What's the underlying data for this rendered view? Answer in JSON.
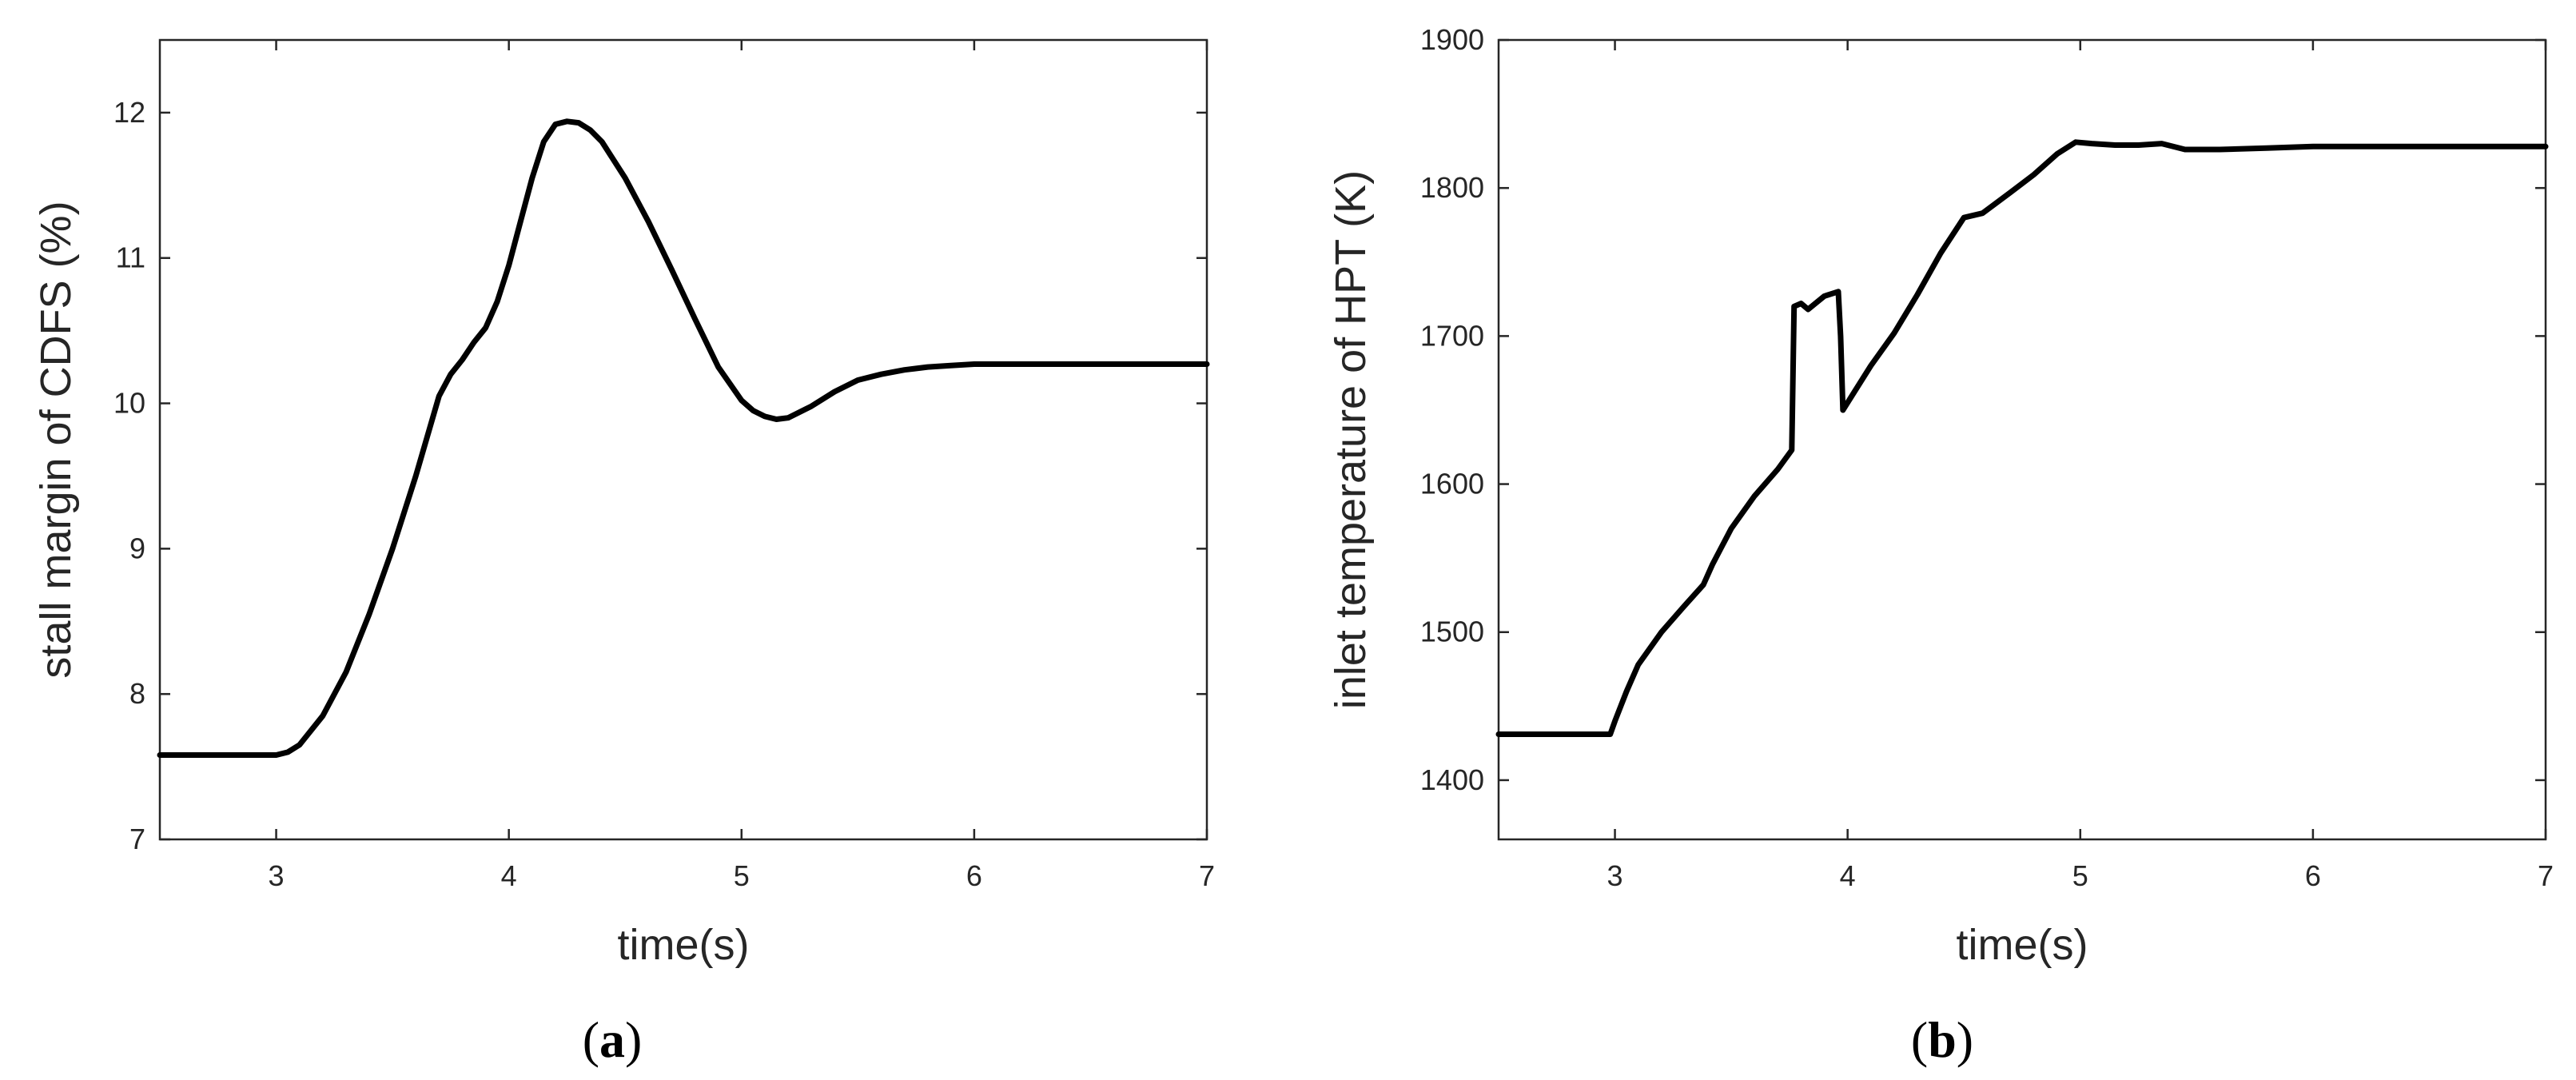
{
  "chart_data": [
    {
      "type": "line",
      "panel_label": "a",
      "xlabel": "time(s)",
      "ylabel": "stall margin of CDFS (%)",
      "xlim": [
        2.5,
        7
      ],
      "ylim": [
        7,
        12.5
      ],
      "xticks": [
        3,
        4,
        5,
        6,
        7
      ],
      "yticks": [
        7,
        8,
        9,
        10,
        11,
        12
      ],
      "grid": false,
      "series_color": "#000000",
      "series": [
        {
          "x": [
            2.5,
            2.9,
            3.0,
            3.05,
            3.1,
            3.2,
            3.3,
            3.4,
            3.5,
            3.6,
            3.7,
            3.75,
            3.8,
            3.85,
            3.9,
            3.95,
            4.0,
            4.05,
            4.1,
            4.15,
            4.2,
            4.25,
            4.3,
            4.35,
            4.4,
            4.5,
            4.6,
            4.7,
            4.8,
            4.9,
            5.0,
            5.05,
            5.1,
            5.15,
            5.2,
            5.3,
            5.4,
            5.5,
            5.6,
            5.7,
            5.8,
            5.9,
            6.0,
            6.5,
            7.0
          ],
          "values": [
            7.58,
            7.58,
            7.58,
            7.6,
            7.65,
            7.85,
            8.15,
            8.55,
            9.0,
            9.5,
            10.05,
            10.2,
            10.3,
            10.42,
            10.52,
            10.7,
            10.95,
            11.25,
            11.55,
            11.8,
            11.92,
            11.94,
            11.93,
            11.88,
            11.8,
            11.55,
            11.25,
            10.92,
            10.58,
            10.25,
            10.02,
            9.95,
            9.91,
            9.89,
            9.9,
            9.98,
            10.08,
            10.16,
            10.2,
            10.23,
            10.25,
            10.26,
            10.27,
            10.27,
            10.27
          ]
        }
      ]
    },
    {
      "type": "line",
      "panel_label": "b",
      "xlabel": "time(s)",
      "ylabel": "inlet temperature of HPT (K)",
      "xlim": [
        2.5,
        7
      ],
      "ylim": [
        1360,
        1900
      ],
      "xticks": [
        3,
        4,
        5,
        6,
        7
      ],
      "yticks": [
        1400,
        1500,
        1600,
        1700,
        1800,
        1900
      ],
      "grid": false,
      "series_color": "#000000",
      "series": [
        {
          "x": [
            2.5,
            2.98,
            3.0,
            3.05,
            3.1,
            3.2,
            3.3,
            3.38,
            3.42,
            3.5,
            3.6,
            3.7,
            3.76,
            3.77,
            3.8,
            3.83,
            3.9,
            3.96,
            3.97,
            3.98,
            4.02,
            4.1,
            4.2,
            4.3,
            4.4,
            4.5,
            4.58,
            4.7,
            4.8,
            4.9,
            4.98,
            5.05,
            5.15,
            5.25,
            5.35,
            5.45,
            5.6,
            5.8,
            6.0,
            6.5,
            7.0
          ],
          "values": [
            1431,
            1431,
            1440,
            1460,
            1478,
            1500,
            1518,
            1532,
            1546,
            1570,
            1592,
            1610,
            1623,
            1720,
            1722,
            1718,
            1727,
            1730,
            1700,
            1650,
            1660,
            1680,
            1702,
            1728,
            1756,
            1780,
            1783,
            1797,
            1809,
            1823,
            1831,
            1830,
            1829,
            1829,
            1830,
            1826,
            1826,
            1827,
            1828,
            1828,
            1828
          ]
        }
      ]
    }
  ]
}
